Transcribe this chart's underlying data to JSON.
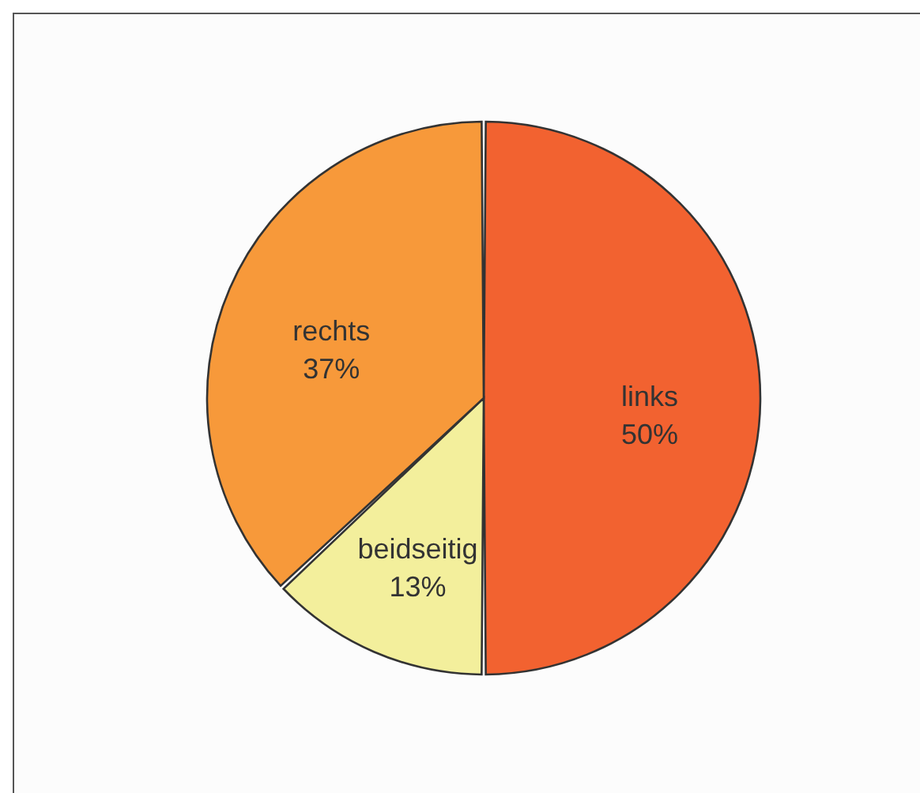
{
  "chart_data": {
    "type": "pie",
    "categories": [
      "links",
      "beidseitig",
      "rechts"
    ],
    "values": [
      50,
      13,
      37
    ],
    "colors": [
      "#f26230",
      "#f3ef9c",
      "#f7993a"
    ],
    "value_labels": [
      "50%",
      "13%",
      "37%"
    ]
  }
}
